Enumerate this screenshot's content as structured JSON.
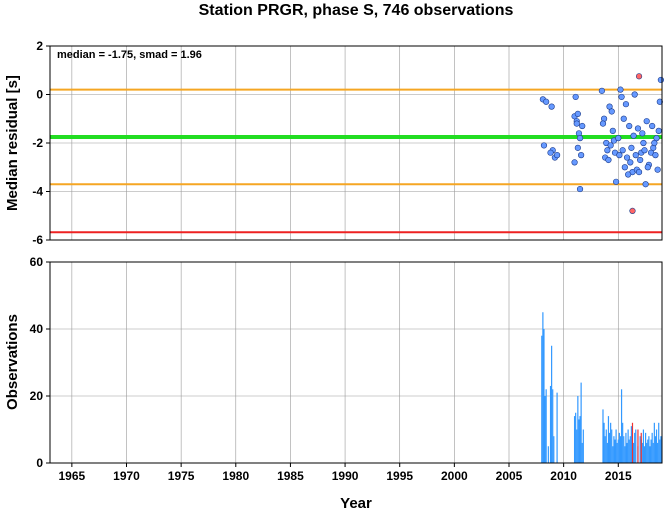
{
  "chart_data": [
    {
      "type": "scatter",
      "title": "Station PRGR, phase S, 746 observations",
      "ylabel": "Median residual [s]",
      "annotation": "median = -1.75, smad = 1.96",
      "xlim": [
        1963,
        2019
      ],
      "ylim": [
        -6,
        2
      ],
      "yticks": [
        "2",
        "0",
        "-2",
        "-4",
        "-6"
      ],
      "ytick_values": [
        2,
        0,
        -2,
        -4,
        -6
      ],
      "grid": true,
      "hlines": [
        {
          "y": 0.2,
          "color": "#f5a623"
        },
        {
          "y": -1.75,
          "color": "#22dd22"
        },
        {
          "y": -3.7,
          "color": "#f5a623"
        },
        {
          "y": -5.68,
          "color": "#ee2222"
        }
      ],
      "series": [
        {
          "color": "#6699ff",
          "x": [
            2008.1,
            2008.4,
            2008.9,
            2009.0,
            2009.2,
            2008.2,
            2008.8,
            2009.4,
            2011.0,
            2011.2,
            2011.3,
            2011.1,
            2011.4,
            2011.5,
            2011.0,
            2011.6,
            2011.3,
            2011.5,
            2011.7,
            2011.2,
            2013.5,
            2013.7,
            2013.9,
            2014.0,
            2013.6,
            2014.2,
            2014.4,
            2014.5,
            2013.8,
            2014.6,
            2014.3,
            2014.1,
            2014.7,
            2015.0,
            2015.2,
            2015.3,
            2015.1,
            2015.5,
            2015.4,
            2015.7,
            2015.8,
            2015.6,
            2016.0,
            2016.2,
            2016.1,
            2016.3,
            2016.5,
            2016.4,
            2016.6,
            2016.8,
            2016.7,
            2017.0,
            2017.2,
            2017.1,
            2017.3,
            2017.5,
            2017.4,
            2017.6,
            2017.8,
            2017.7,
            2018.0,
            2018.2,
            2018.1,
            2018.3,
            2018.5,
            2018.4,
            2018.6,
            2018.8,
            2018.7,
            2018.9,
            2014.8,
            2015.9,
            2016.9
          ],
          "y": [
            -0.2,
            -0.3,
            -0.5,
            -2.3,
            -2.6,
            -2.1,
            -2.4,
            -2.5,
            -0.9,
            -1.1,
            -0.8,
            -0.1,
            -1.6,
            -1.8,
            -2.8,
            -2.5,
            -2.2,
            -3.9,
            -1.3,
            -1.2,
            0.15,
            -1.0,
            -2.0,
            -2.3,
            -1.2,
            -0.5,
            -0.7,
            -1.5,
            -2.6,
            -1.9,
            -2.1,
            -2.7,
            -2.4,
            -1.8,
            0.2,
            -0.1,
            -2.5,
            -1.0,
            -2.3,
            -0.4,
            -2.6,
            -3.0,
            -1.3,
            -2.2,
            -2.8,
            -3.2,
            0.0,
            -1.7,
            -2.5,
            -1.4,
            -3.1,
            -2.7,
            -1.6,
            -2.4,
            -2.0,
            -3.7,
            -2.3,
            -1.1,
            -2.9,
            -3.0,
            -2.4,
            -2.2,
            -1.3,
            -2.0,
            -1.8,
            -2.5,
            -3.1,
            -0.3,
            -1.5,
            0.6,
            -3.6,
            -3.3,
            -3.2
          ]
        },
        {
          "color": "#ff6666",
          "x": [
            2016.3,
            2016.9
          ],
          "y": [
            -4.8,
            0.75
          ]
        }
      ]
    },
    {
      "type": "bar",
      "xlabel": "Year",
      "ylabel": "Observations",
      "xlim": [
        1963,
        2019
      ],
      "ylim": [
        0,
        60
      ],
      "xticks": [
        "1965",
        "1970",
        "1975",
        "1980",
        "1985",
        "1990",
        "1995",
        "2000",
        "2005",
        "2010",
        "2015"
      ],
      "xtick_values": [
        1965,
        1970,
        1975,
        1980,
        1985,
        1990,
        1995,
        2000,
        2005,
        2010,
        2015
      ],
      "yticks": [
        "60",
        "40",
        "20",
        "0"
      ],
      "ytick_values": [
        60,
        40,
        20,
        0
      ],
      "grid": true,
      "series": [
        {
          "color": "#3399ff",
          "x": [
            2008.0,
            2008.1,
            2008.2,
            2008.3,
            2008.4,
            2008.6,
            2008.8,
            2008.9,
            2009.0,
            2009.1,
            2009.4,
            2011.0,
            2011.1,
            2011.2,
            2011.3,
            2011.4,
            2011.5,
            2011.6,
            2011.7,
            2011.8,
            2013.6,
            2013.7,
            2013.8,
            2013.9,
            2014.0,
            2014.1,
            2014.2,
            2014.3,
            2014.4,
            2014.5,
            2014.6,
            2014.7,
            2014.8,
            2014.9,
            2015.0,
            2015.1,
            2015.2,
            2015.3,
            2015.4,
            2015.5,
            2015.6,
            2015.7,
            2015.8,
            2015.9,
            2016.0,
            2016.1,
            2016.2,
            2016.4,
            2016.5,
            2016.6,
            2016.8,
            2017.0,
            2017.1,
            2017.2,
            2017.3,
            2017.4,
            2017.5,
            2017.6,
            2017.7,
            2017.8,
            2017.9,
            2018.0,
            2018.1,
            2018.2,
            2018.3,
            2018.4,
            2018.5,
            2018.6,
            2018.7,
            2018.8,
            2018.9
          ],
          "values": [
            38,
            45,
            40,
            20,
            22,
            5,
            23,
            35,
            22,
            8,
            21,
            14,
            15,
            10,
            20,
            13,
            14,
            24,
            6,
            10,
            16,
            12,
            8,
            10,
            6,
            14,
            9,
            12,
            10,
            5,
            8,
            7,
            10,
            6,
            7,
            9,
            8,
            22,
            12,
            8,
            5,
            9,
            6,
            10,
            7,
            8,
            11,
            6,
            9,
            10,
            5,
            8,
            7,
            6,
            10,
            5,
            9,
            6,
            7,
            8,
            5,
            7,
            9,
            6,
            12,
            8,
            10,
            6,
            12,
            7,
            8
          ]
        },
        {
          "color": "#ee3333",
          "x": [
            2016.3,
            2016.8,
            2017.1
          ],
          "values": [
            12,
            10,
            9
          ]
        }
      ]
    }
  ]
}
